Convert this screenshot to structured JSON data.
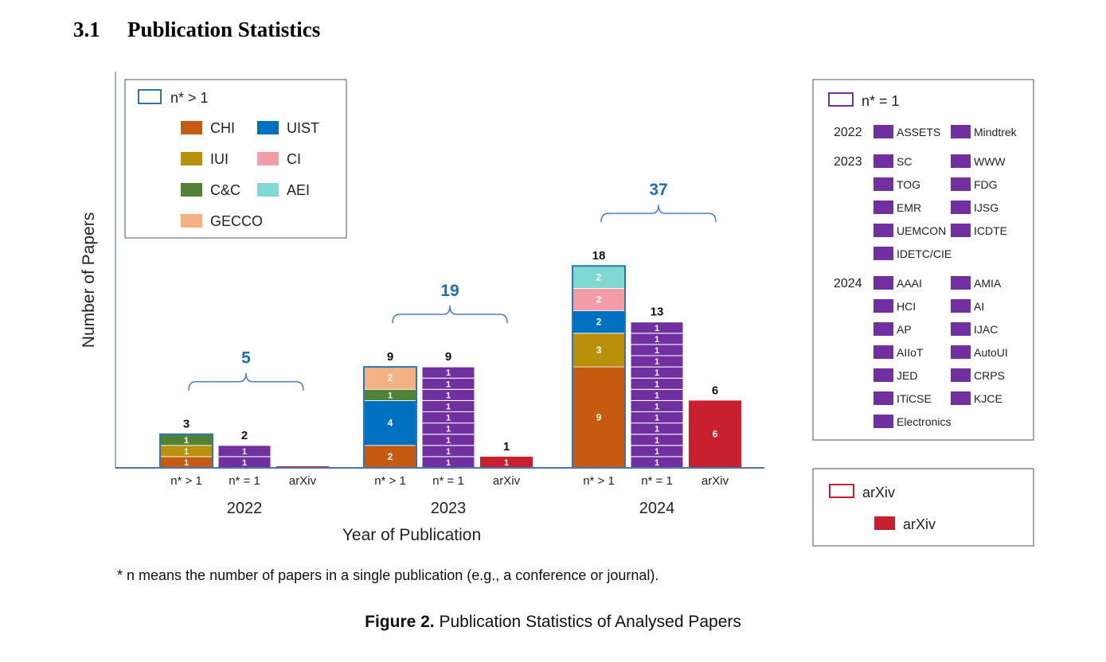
{
  "section": {
    "number": "3.1",
    "title": "Publication Statistics"
  },
  "footnote": "* n means the number of papers in a single publication (e.g., a conference or journal).",
  "caption": {
    "label": "Figure 2.",
    "text": "Publication Statistics of Analysed Papers"
  },
  "chart_data": {
    "type": "bar",
    "stacked": true,
    "title": "",
    "ylabel": "Number of Papers",
    "xlabel": "Year of Publication",
    "ylim": [
      0,
      18
    ],
    "groups": [
      "2022",
      "2023",
      "2024"
    ],
    "categories": [
      "n* > 1",
      "n* = 1",
      "arXiv"
    ],
    "group_totals": [
      {
        "group": "2022",
        "total": "5"
      },
      {
        "group": "2023",
        "total": "19"
      },
      {
        "group": "2024",
        "total": "37"
      }
    ],
    "bars": [
      {
        "group": "2022",
        "category": "n* > 1",
        "total": "3",
        "kind": "multi",
        "segments": [
          {
            "venue": "CHI",
            "value": 1
          },
          {
            "venue": "IUI",
            "value": 1
          },
          {
            "venue": "C&C",
            "value": 1
          }
        ]
      },
      {
        "group": "2022",
        "category": "n* = 1",
        "total": "2",
        "kind": "single",
        "segments": [
          {
            "venue": "ASSETS",
            "value": 1
          },
          {
            "venue": "Mindtrek",
            "value": 1
          }
        ]
      },
      {
        "group": "2022",
        "category": "arXiv",
        "total": "",
        "kind": "arxiv",
        "segments": [
          {
            "venue": "arXiv",
            "value": 0
          }
        ]
      },
      {
        "group": "2023",
        "category": "n* > 1",
        "total": "9",
        "kind": "multi",
        "segments": [
          {
            "venue": "CHI",
            "value": 2
          },
          {
            "venue": "UIST",
            "value": 4
          },
          {
            "venue": "C&C",
            "value": 1
          },
          {
            "venue": "GECCO",
            "value": 2
          }
        ]
      },
      {
        "group": "2023",
        "category": "n* = 1",
        "total": "9",
        "kind": "single",
        "segments": [
          {
            "venue": "SC",
            "value": 1
          },
          {
            "venue": "WWW",
            "value": 1
          },
          {
            "venue": "TOG",
            "value": 1
          },
          {
            "venue": "FDG",
            "value": 1
          },
          {
            "venue": "EMR",
            "value": 1
          },
          {
            "venue": "IJSG",
            "value": 1
          },
          {
            "venue": "UEMCON",
            "value": 1
          },
          {
            "venue": "ICDTE",
            "value": 1
          },
          {
            "venue": "IDETC/CIE",
            "value": 1
          }
        ]
      },
      {
        "group": "2023",
        "category": "arXiv",
        "total": "1",
        "kind": "arxiv",
        "segments": [
          {
            "venue": "arXiv",
            "value": 1
          }
        ]
      },
      {
        "group": "2024",
        "category": "n* > 1",
        "total": "18",
        "kind": "multi",
        "segments": [
          {
            "venue": "CHI",
            "value": 9
          },
          {
            "venue": "IUI",
            "value": 3
          },
          {
            "venue": "UIST",
            "value": 2
          },
          {
            "venue": "CI",
            "value": 2
          },
          {
            "venue": "AEI",
            "value": 2
          }
        ]
      },
      {
        "group": "2024",
        "category": "n* = 1",
        "total": "13",
        "kind": "single",
        "segments": [
          {
            "venue": "AAAI",
            "value": 1
          },
          {
            "venue": "AMIA",
            "value": 1
          },
          {
            "venue": "HCI",
            "value": 1
          },
          {
            "venue": "AI",
            "value": 1
          },
          {
            "venue": "AP",
            "value": 1
          },
          {
            "venue": "IJAC",
            "value": 1
          },
          {
            "venue": "AIIoT",
            "value": 1
          },
          {
            "venue": "AutoUI",
            "value": 1
          },
          {
            "venue": "JED",
            "value": 1
          },
          {
            "venue": "CRPS",
            "value": 1
          },
          {
            "venue": "ITiCSE",
            "value": 1
          },
          {
            "venue": "KJCE",
            "value": 1
          },
          {
            "venue": "Electronics",
            "value": 1
          }
        ]
      },
      {
        "group": "2024",
        "category": "arXiv",
        "total": "6",
        "kind": "arxiv",
        "segments": [
          {
            "venue": "arXiv",
            "value": 6
          }
        ]
      }
    ],
    "venue_colors": {
      "CHI": "#c55a11",
      "IUI": "#b8900a",
      "C&C": "#548235",
      "GECCO": "#f4b183",
      "UIST": "#0070c0",
      "CI": "#f19ca7",
      "AEI": "#7fd9d2",
      "single": "#7030a0",
      "arXiv": "#c9202f"
    },
    "frame_colors": {
      "multi": "#2e75b6",
      "single": "#7030a0",
      "arxiv": "#c9202f",
      "brace": "#4472c4",
      "total": "#1f6fb2"
    },
    "legend_multi": {
      "title": "n* > 1",
      "entries": [
        "CHI",
        "UIST",
        "IUI",
        "CI",
        "C&C",
        "AEI",
        "GECCO"
      ]
    },
    "legend_single": {
      "title": "n* = 1",
      "years": [
        {
          "year": "2022",
          "venues": [
            "ASSETS",
            "Mindtrek"
          ]
        },
        {
          "year": "2023",
          "venues": [
            "SC",
            "WWW",
            "TOG",
            "FDG",
            "EMR",
            "IJSG",
            "UEMCON",
            "ICDTE",
            "IDETC/CIE"
          ]
        },
        {
          "year": "2024",
          "venues": [
            "AAAI",
            "AMIA",
            "HCI",
            "AI",
            "AP",
            "IJAC",
            "AIIoT",
            "AutoUI",
            "JED",
            "CRPS",
            "ITiCSE",
            "KJCE",
            "Electronics"
          ]
        }
      ]
    },
    "legend_arxiv": {
      "title": "arXiv",
      "entries": [
        "arXiv"
      ]
    }
  }
}
